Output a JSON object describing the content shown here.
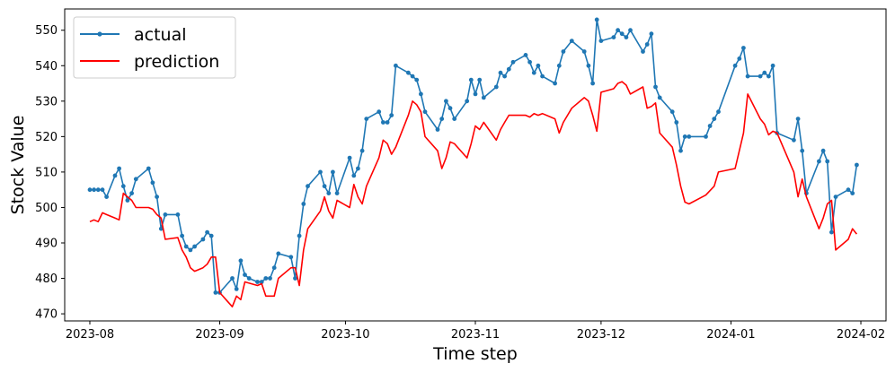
{
  "chart_data": {
    "type": "line",
    "xlabel": "Time step",
    "ylabel": "Stock Value",
    "x_ticks": [
      "2023-08",
      "2023-09",
      "2023-10",
      "2023-11",
      "2023-12",
      "2024-01",
      "2024-02"
    ],
    "y_ticks": [
      470,
      480,
      490,
      500,
      510,
      520,
      530,
      540,
      550
    ],
    "xlim": [
      "2023-07-26",
      "2024-02-07"
    ],
    "ylim": [
      468,
      556
    ],
    "legend_position": "top-left",
    "series": [
      {
        "name": "actual",
        "color": "#1f77b4",
        "marker": "circle",
        "points": [
          [
            "2023-08-01",
            505
          ],
          [
            "2023-08-02",
            505
          ],
          [
            "2023-08-03",
            505
          ],
          [
            "2023-08-04",
            505
          ],
          [
            "2023-08-05",
            503
          ],
          [
            "2023-08-07",
            509
          ],
          [
            "2023-08-08",
            511
          ],
          [
            "2023-08-09",
            506
          ],
          [
            "2023-08-10",
            502
          ],
          [
            "2023-08-11",
            504
          ],
          [
            "2023-08-12",
            508
          ],
          [
            "2023-08-15",
            511
          ],
          [
            "2023-08-16",
            507
          ],
          [
            "2023-08-17",
            503
          ],
          [
            "2023-08-18",
            494
          ],
          [
            "2023-08-19",
            498
          ],
          [
            "2023-08-22",
            498
          ],
          [
            "2023-08-23",
            492
          ],
          [
            "2023-08-24",
            489
          ],
          [
            "2023-08-25",
            488
          ],
          [
            "2023-08-26",
            489
          ],
          [
            "2023-08-28",
            491
          ],
          [
            "2023-08-29",
            493
          ],
          [
            "2023-08-30",
            492
          ],
          [
            "2023-08-31",
            476
          ],
          [
            "2023-09-01",
            476
          ],
          [
            "2023-09-04",
            480
          ],
          [
            "2023-09-05",
            477
          ],
          [
            "2023-09-06",
            485
          ],
          [
            "2023-09-07",
            481
          ],
          [
            "2023-09-08",
            480
          ],
          [
            "2023-09-10",
            479
          ],
          [
            "2023-09-11",
            479
          ],
          [
            "2023-09-12",
            480
          ],
          [
            "2023-09-13",
            480
          ],
          [
            "2023-09-14",
            483
          ],
          [
            "2023-09-15",
            487
          ],
          [
            "2023-09-18",
            486
          ],
          [
            "2023-09-19",
            480
          ],
          [
            "2023-09-20",
            492
          ],
          [
            "2023-09-21",
            501
          ],
          [
            "2023-09-22",
            506
          ],
          [
            "2023-09-25",
            510
          ],
          [
            "2023-09-26",
            506
          ],
          [
            "2023-09-27",
            504
          ],
          [
            "2023-09-28",
            510
          ],
          [
            "2023-09-29",
            504
          ],
          [
            "2023-10-02",
            514
          ],
          [
            "2023-10-03",
            509
          ],
          [
            "2023-10-04",
            511
          ],
          [
            "2023-10-05",
            516
          ],
          [
            "2023-10-06",
            525
          ],
          [
            "2023-10-09",
            527
          ],
          [
            "2023-10-10",
            524
          ],
          [
            "2023-10-11",
            524
          ],
          [
            "2023-10-12",
            526
          ],
          [
            "2023-10-13",
            540
          ],
          [
            "2023-10-16",
            538
          ],
          [
            "2023-10-17",
            537
          ],
          [
            "2023-10-18",
            536
          ],
          [
            "2023-10-19",
            532
          ],
          [
            "2023-10-20",
            527
          ],
          [
            "2023-10-23",
            522
          ],
          [
            "2023-10-24",
            525
          ],
          [
            "2023-10-25",
            530
          ],
          [
            "2023-10-26",
            528
          ],
          [
            "2023-10-27",
            525
          ],
          [
            "2023-10-30",
            530
          ],
          [
            "2023-10-31",
            536
          ],
          [
            "2023-11-01",
            532
          ],
          [
            "2023-11-02",
            536
          ],
          [
            "2023-11-03",
            531
          ],
          [
            "2023-11-06",
            534
          ],
          [
            "2023-11-07",
            538
          ],
          [
            "2023-11-08",
            537
          ],
          [
            "2023-11-09",
            539
          ],
          [
            "2023-11-10",
            541
          ],
          [
            "2023-11-13",
            543
          ],
          [
            "2023-11-14",
            541
          ],
          [
            "2023-11-15",
            538
          ],
          [
            "2023-11-16",
            540
          ],
          [
            "2023-11-17",
            537
          ],
          [
            "2023-11-20",
            535
          ],
          [
            "2023-11-21",
            540
          ],
          [
            "2023-11-22",
            544
          ],
          [
            "2023-11-24",
            547
          ],
          [
            "2023-11-27",
            544
          ],
          [
            "2023-11-28",
            540
          ],
          [
            "2023-11-29",
            535
          ],
          [
            "2023-11-30",
            553
          ],
          [
            "2023-12-01",
            547
          ],
          [
            "2023-12-04",
            548
          ],
          [
            "2023-12-05",
            550
          ],
          [
            "2023-12-06",
            549
          ],
          [
            "2023-12-07",
            548
          ],
          [
            "2023-12-08",
            550
          ],
          [
            "2023-12-11",
            544
          ],
          [
            "2023-12-12",
            546
          ],
          [
            "2023-12-13",
            549
          ],
          [
            "2023-12-14",
            534
          ],
          [
            "2023-12-15",
            531
          ],
          [
            "2023-12-18",
            527
          ],
          [
            "2023-12-19",
            524
          ],
          [
            "2023-12-20",
            516
          ],
          [
            "2023-12-21",
            520
          ],
          [
            "2023-12-22",
            520
          ],
          [
            "2023-12-26",
            520
          ],
          [
            "2023-12-27",
            523
          ],
          [
            "2023-12-28",
            525
          ],
          [
            "2023-12-29",
            527
          ],
          [
            "2024-01-02",
            540
          ],
          [
            "2024-01-03",
            542
          ],
          [
            "2024-01-04",
            545
          ],
          [
            "2024-01-05",
            537
          ],
          [
            "2024-01-08",
            537
          ],
          [
            "2024-01-09",
            538
          ],
          [
            "2024-01-10",
            537
          ],
          [
            "2024-01-11",
            540
          ],
          [
            "2024-01-12",
            521
          ],
          [
            "2024-01-16",
            519
          ],
          [
            "2024-01-17",
            525
          ],
          [
            "2024-01-18",
            516
          ],
          [
            "2024-01-19",
            504
          ],
          [
            "2024-01-22",
            513
          ],
          [
            "2024-01-23",
            516
          ],
          [
            "2024-01-24",
            513
          ],
          [
            "2024-01-25",
            493
          ],
          [
            "2024-01-26",
            503
          ],
          [
            "2024-01-29",
            505
          ],
          [
            "2024-01-30",
            504
          ],
          [
            "2024-01-31",
            512
          ]
        ]
      },
      {
        "name": "prediction",
        "color": "#ff0000",
        "marker": "none",
        "points": [
          [
            "2023-08-01",
            496
          ],
          [
            "2023-08-02",
            496.5
          ],
          [
            "2023-08-03",
            496
          ],
          [
            "2023-08-04",
            498.5
          ],
          [
            "2023-08-05",
            498
          ],
          [
            "2023-08-07",
            497
          ],
          [
            "2023-08-08",
            496.5
          ],
          [
            "2023-08-09",
            504
          ],
          [
            "2023-08-10",
            503
          ],
          [
            "2023-08-11",
            502
          ],
          [
            "2023-08-12",
            500
          ],
          [
            "2023-08-15",
            500
          ],
          [
            "2023-08-16",
            499.5
          ],
          [
            "2023-08-17",
            498
          ],
          [
            "2023-08-18",
            497
          ],
          [
            "2023-08-19",
            491
          ],
          [
            "2023-08-22",
            491.5
          ],
          [
            "2023-08-23",
            488
          ],
          [
            "2023-08-24",
            486
          ],
          [
            "2023-08-25",
            483
          ],
          [
            "2023-08-26",
            482
          ],
          [
            "2023-08-28",
            483
          ],
          [
            "2023-08-29",
            484
          ],
          [
            "2023-08-30",
            486
          ],
          [
            "2023-08-31",
            486
          ],
          [
            "2023-09-01",
            476
          ],
          [
            "2023-09-04",
            472
          ],
          [
            "2023-09-05",
            475
          ],
          [
            "2023-09-06",
            474
          ],
          [
            "2023-09-07",
            479
          ],
          [
            "2023-09-10",
            478
          ],
          [
            "2023-09-11",
            478.5
          ],
          [
            "2023-09-12",
            475
          ],
          [
            "2023-09-14",
            475
          ],
          [
            "2023-09-15",
            480
          ],
          [
            "2023-09-18",
            483
          ],
          [
            "2023-09-19",
            483
          ],
          [
            "2023-09-20",
            478
          ],
          [
            "2023-09-21",
            488
          ],
          [
            "2023-09-22",
            494
          ],
          [
            "2023-09-25",
            499
          ],
          [
            "2023-09-26",
            503
          ],
          [
            "2023-09-27",
            499
          ],
          [
            "2023-09-28",
            497
          ],
          [
            "2023-09-29",
            502
          ],
          [
            "2023-10-02",
            500
          ],
          [
            "2023-10-03",
            506.5
          ],
          [
            "2023-10-04",
            503
          ],
          [
            "2023-10-05",
            501
          ],
          [
            "2023-10-06",
            506
          ],
          [
            "2023-10-09",
            514
          ],
          [
            "2023-10-10",
            519
          ],
          [
            "2023-10-11",
            518
          ],
          [
            "2023-10-12",
            515
          ],
          [
            "2023-10-13",
            517
          ],
          [
            "2023-10-16",
            526
          ],
          [
            "2023-10-17",
            530
          ],
          [
            "2023-10-18",
            529
          ],
          [
            "2023-10-19",
            527
          ],
          [
            "2023-10-20",
            520
          ],
          [
            "2023-10-23",
            516
          ],
          [
            "2023-10-24",
            511
          ],
          [
            "2023-10-25",
            514
          ],
          [
            "2023-10-26",
            518.5
          ],
          [
            "2023-10-27",
            518
          ],
          [
            "2023-10-30",
            514
          ],
          [
            "2023-10-31",
            518
          ],
          [
            "2023-11-01",
            523
          ],
          [
            "2023-11-02",
            522
          ],
          [
            "2023-11-03",
            524
          ],
          [
            "2023-11-06",
            519
          ],
          [
            "2023-11-07",
            522
          ],
          [
            "2023-11-08",
            524
          ],
          [
            "2023-11-09",
            526
          ],
          [
            "2023-11-13",
            526
          ],
          [
            "2023-11-14",
            525.5
          ],
          [
            "2023-11-15",
            526.5
          ],
          [
            "2023-11-16",
            526
          ],
          [
            "2023-11-17",
            526.5
          ],
          [
            "2023-11-20",
            525
          ],
          [
            "2023-11-21",
            521
          ],
          [
            "2023-11-22",
            524
          ],
          [
            "2023-11-24",
            528
          ],
          [
            "2023-11-27",
            531
          ],
          [
            "2023-11-28",
            530
          ],
          [
            "2023-11-29",
            526
          ],
          [
            "2023-11-30",
            521.5
          ],
          [
            "2023-12-01",
            532.5
          ],
          [
            "2023-12-04",
            533.5
          ],
          [
            "2023-12-05",
            535
          ],
          [
            "2023-12-06",
            535.5
          ],
          [
            "2023-12-07",
            534.5
          ],
          [
            "2023-12-08",
            532
          ],
          [
            "2023-12-11",
            534
          ],
          [
            "2023-12-12",
            528
          ],
          [
            "2023-12-13",
            528.5
          ],
          [
            "2023-12-14",
            529.5
          ],
          [
            "2023-12-15",
            521
          ],
          [
            "2023-12-18",
            517
          ],
          [
            "2023-12-19",
            512
          ],
          [
            "2023-12-20",
            506
          ],
          [
            "2023-12-21",
            501.5
          ],
          [
            "2023-12-22",
            501
          ],
          [
            "2023-12-26",
            503.5
          ],
          [
            "2023-12-28",
            506
          ],
          [
            "2023-12-29",
            510
          ],
          [
            "2024-01-02",
            511
          ],
          [
            "2024-01-04",
            521
          ],
          [
            "2024-01-05",
            532
          ],
          [
            "2024-01-08",
            525
          ],
          [
            "2024-01-09",
            523.5
          ],
          [
            "2024-01-10",
            520.5
          ],
          [
            "2024-01-11",
            521.5
          ],
          [
            "2024-01-12",
            521
          ],
          [
            "2024-01-16",
            510
          ],
          [
            "2024-01-17",
            503
          ],
          [
            "2024-01-18",
            508
          ],
          [
            "2024-01-19",
            503
          ],
          [
            "2024-01-22",
            494
          ],
          [
            "2024-01-23",
            497
          ],
          [
            "2024-01-24",
            501
          ],
          [
            "2024-01-25",
            502
          ],
          [
            "2024-01-26",
            488
          ],
          [
            "2024-01-29",
            491
          ],
          [
            "2024-01-30",
            494
          ],
          [
            "2024-01-31",
            492.5
          ]
        ]
      }
    ]
  }
}
